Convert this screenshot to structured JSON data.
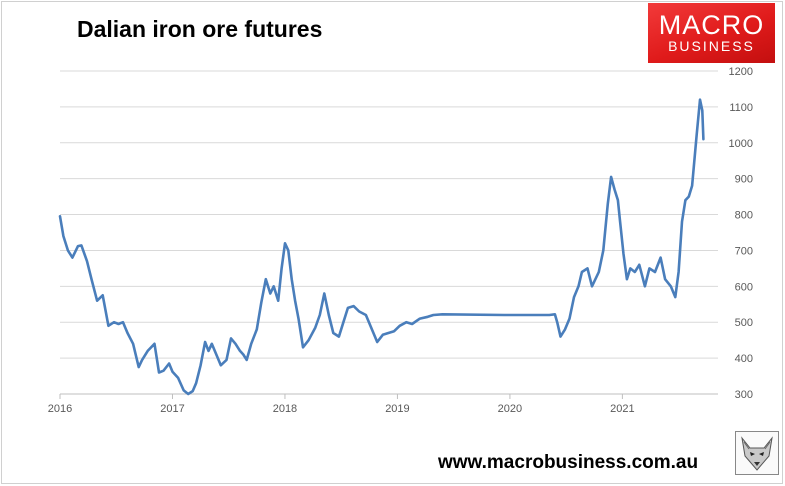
{
  "chart_data": {
    "type": "line",
    "title": "Dalian iron ore futures",
    "xlabel": "",
    "ylabel": "",
    "ylim": [
      300,
      1200
    ],
    "xlim": [
      2016,
      2021.85
    ],
    "grid": "horizontal",
    "legend": "none",
    "y_axis_position": "right",
    "y_ticks": [
      300,
      400,
      500,
      600,
      700,
      800,
      900,
      1000,
      1100,
      1200
    ],
    "x_ticks": [
      2016,
      2017,
      2018,
      2019,
      2020,
      2021
    ],
    "x_tick_labels": [
      "2016",
      "2017",
      "2018",
      "2019",
      "2020",
      "2021"
    ],
    "series": [
      {
        "color": "#4a7ebb",
        "points": [
          [
            2016.0,
            795
          ],
          [
            2016.03,
            740
          ],
          [
            2016.07,
            700
          ],
          [
            2016.11,
            680
          ],
          [
            2016.16,
            712
          ],
          [
            2016.19,
            714
          ],
          [
            2016.24,
            670
          ],
          [
            2016.28,
            620
          ],
          [
            2016.33,
            560
          ],
          [
            2016.38,
            575
          ],
          [
            2016.43,
            490
          ],
          [
            2016.48,
            500
          ],
          [
            2016.52,
            495
          ],
          [
            2016.56,
            500
          ],
          [
            2016.6,
            470
          ],
          [
            2016.65,
            440
          ],
          [
            2016.7,
            375
          ],
          [
            2016.73,
            395
          ],
          [
            2016.78,
            420
          ],
          [
            2016.84,
            440
          ],
          [
            2016.88,
            360
          ],
          [
            2016.92,
            365
          ],
          [
            2016.97,
            385
          ],
          [
            2017.0,
            362
          ],
          [
            2017.05,
            345
          ],
          [
            2017.1,
            310
          ],
          [
            2017.14,
            300
          ],
          [
            2017.18,
            308
          ],
          [
            2017.21,
            330
          ],
          [
            2017.25,
            380
          ],
          [
            2017.29,
            445
          ],
          [
            2017.32,
            420
          ],
          [
            2017.35,
            440
          ],
          [
            2017.39,
            410
          ],
          [
            2017.43,
            380
          ],
          [
            2017.48,
            395
          ],
          [
            2017.52,
            455
          ],
          [
            2017.56,
            440
          ],
          [
            2017.6,
            420
          ],
          [
            2017.63,
            410
          ],
          [
            2017.66,
            395
          ],
          [
            2017.7,
            440
          ],
          [
            2017.75,
            480
          ],
          [
            2017.79,
            555
          ],
          [
            2017.83,
            620
          ],
          [
            2017.87,
            580
          ],
          [
            2017.9,
            600
          ],
          [
            2017.94,
            560
          ],
          [
            2017.97,
            650
          ],
          [
            2018.0,
            720
          ],
          [
            2018.03,
            700
          ],
          [
            2018.06,
            620
          ],
          [
            2018.09,
            560
          ],
          [
            2018.12,
            510
          ],
          [
            2018.16,
            430
          ],
          [
            2018.21,
            450
          ],
          [
            2018.27,
            485
          ],
          [
            2018.31,
            520
          ],
          [
            2018.35,
            580
          ],
          [
            2018.39,
            520
          ],
          [
            2018.43,
            470
          ],
          [
            2018.48,
            460
          ],
          [
            2018.52,
            500
          ],
          [
            2018.56,
            540
          ],
          [
            2018.61,
            545
          ],
          [
            2018.66,
            530
          ],
          [
            2018.72,
            520
          ],
          [
            2018.78,
            475
          ],
          [
            2018.82,
            445
          ],
          [
            2018.87,
            465
          ],
          [
            2018.92,
            470
          ],
          [
            2018.97,
            475
          ],
          [
            2019.02,
            490
          ],
          [
            2019.08,
            500
          ],
          [
            2019.13,
            495
          ],
          [
            2019.2,
            510
          ],
          [
            2019.27,
            515
          ],
          [
            2019.32,
            520
          ],
          [
            2019.4,
            522
          ],
          [
            2019.95,
            520
          ],
          [
            2020.35,
            520
          ],
          [
            2020.4,
            522
          ],
          [
            2020.42,
            500
          ],
          [
            2020.45,
            460
          ],
          [
            2020.49,
            480
          ],
          [
            2020.53,
            510
          ],
          [
            2020.57,
            570
          ],
          [
            2020.61,
            600
          ],
          [
            2020.64,
            640
          ],
          [
            2020.69,
            650
          ],
          [
            2020.73,
            600
          ],
          [
            2020.79,
            640
          ],
          [
            2020.83,
            700
          ],
          [
            2020.87,
            830
          ],
          [
            2020.9,
            905
          ],
          [
            2020.93,
            870
          ],
          [
            2020.96,
            840
          ],
          [
            2020.98,
            780
          ],
          [
            2021.01,
            690
          ],
          [
            2021.04,
            620
          ],
          [
            2021.07,
            650
          ],
          [
            2021.11,
            640
          ],
          [
            2021.15,
            660
          ],
          [
            2021.2,
            600
          ],
          [
            2021.24,
            650
          ],
          [
            2021.29,
            640
          ],
          [
            2021.34,
            680
          ],
          [
            2021.38,
            620
          ],
          [
            2021.43,
            600
          ],
          [
            2021.47,
            570
          ],
          [
            2021.5,
            640
          ],
          [
            2021.53,
            780
          ],
          [
            2021.56,
            840
          ],
          [
            2021.59,
            850
          ],
          [
            2021.62,
            880
          ],
          [
            2021.66,
            1020
          ],
          [
            2021.69,
            1120
          ],
          [
            2021.71,
            1090
          ],
          [
            2021.72,
            1010
          ]
        ]
      }
    ]
  },
  "footer": {
    "url": "www.macrobusiness.com.au"
  },
  "logo": {
    "line1": "MACRO",
    "line2": "BUSINESS"
  },
  "icons": {
    "mascot": "fox-mascot-icon"
  }
}
